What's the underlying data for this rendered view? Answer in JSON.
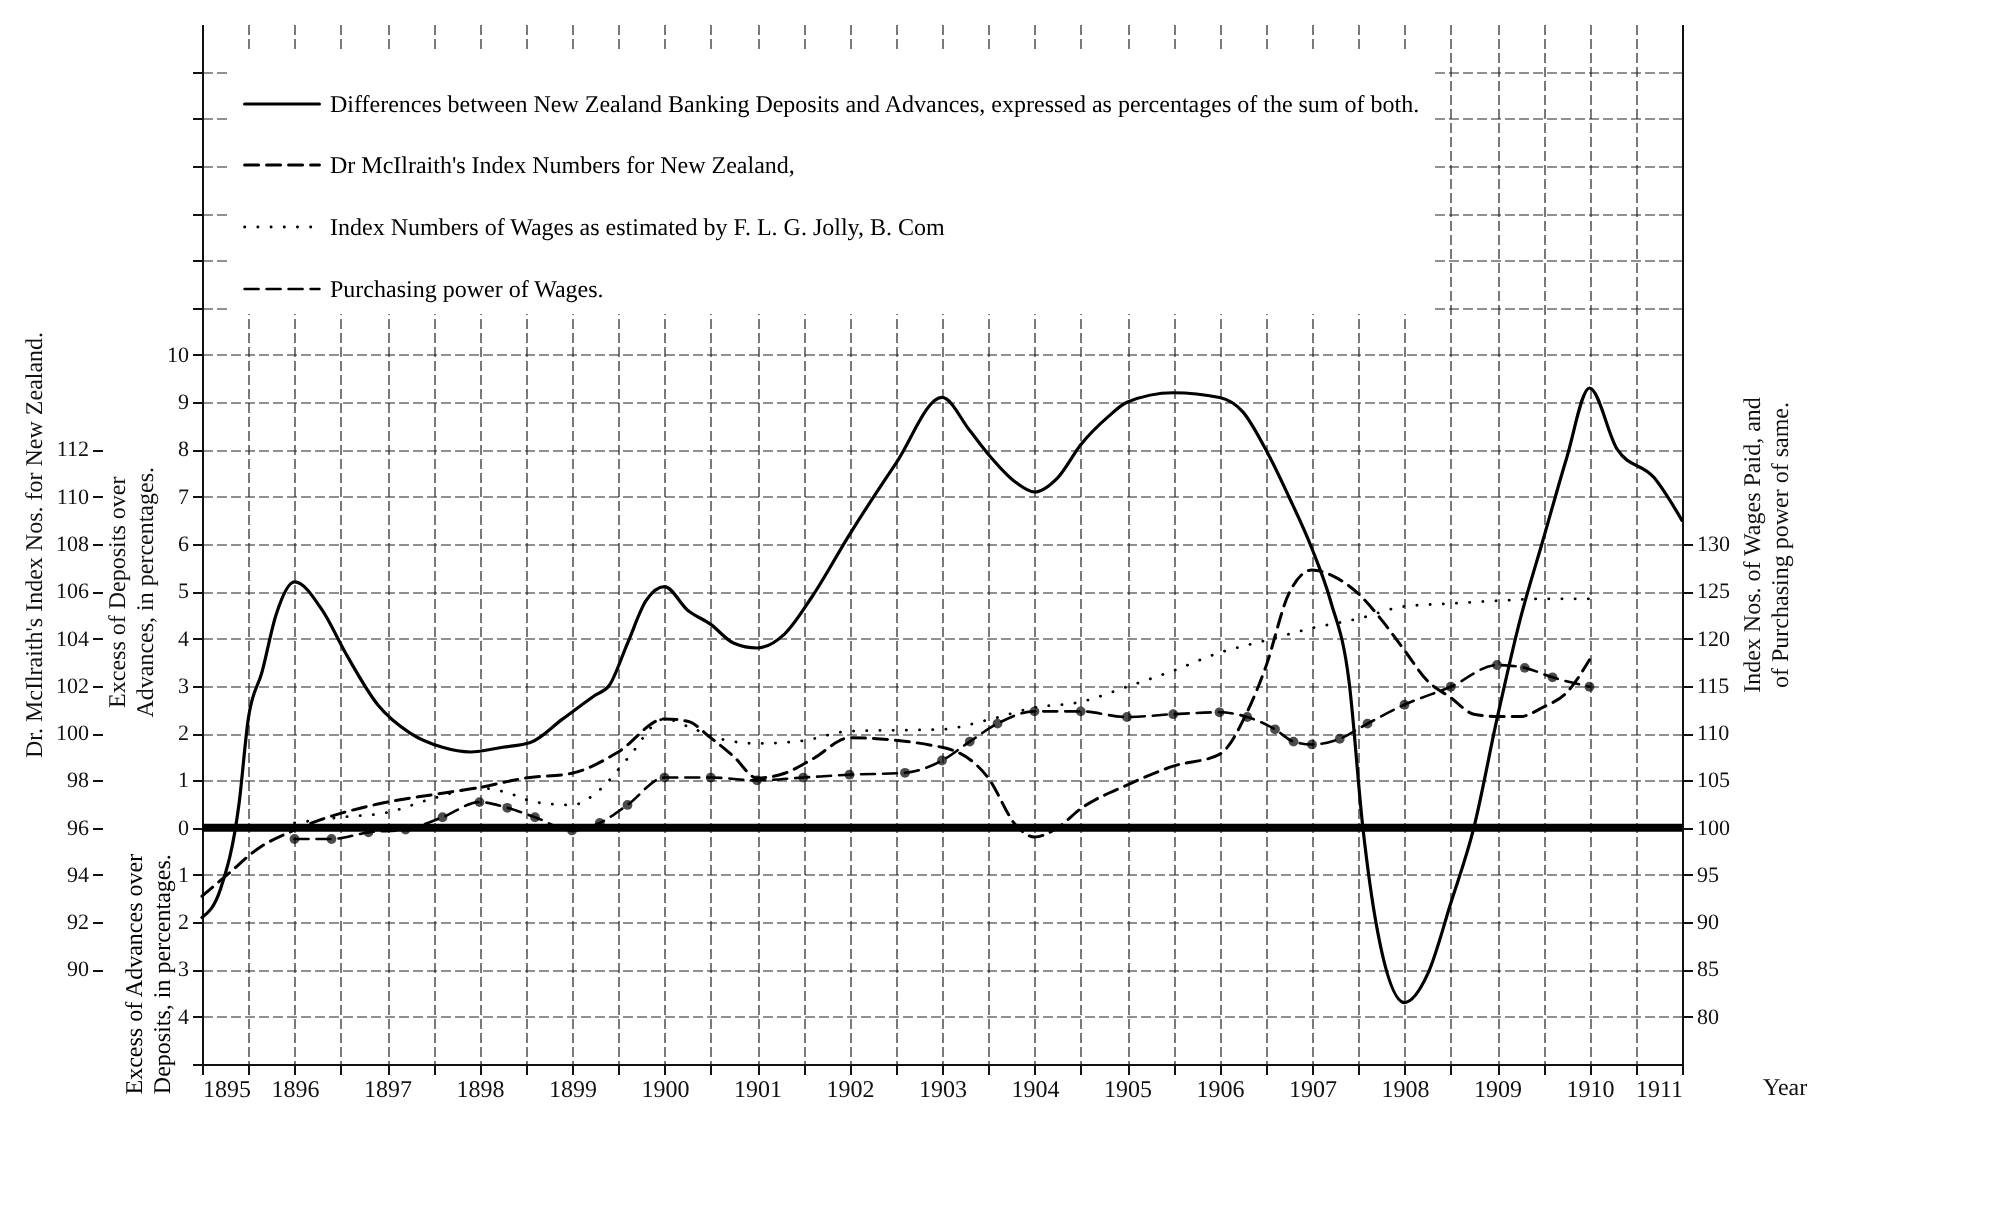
{
  "chart_data": {
    "type": "line",
    "xlabel": "Year",
    "ylabel": "Excess of Deposits over Advances, in percentages.",
    "y2label": "Dr. McIlraith's Index Nos. for New Zealand.",
    "y3label": "Index Nos. of Wages Paid, and of Purchasing power of same.",
    "annotations": [
      "Excess of Advances over Deposits, in percentages."
    ],
    "xlim": [
      1895,
      1911
    ],
    "xticks": [
      1895,
      {
        "value": 1895.5,
        "label": null
      },
      1896,
      {
        "value": 1896.5,
        "label": null
      },
      1897,
      {
        "value": 1897.5,
        "label": null
      },
      1898,
      {
        "value": 1898.5,
        "label": null
      },
      1899,
      {
        "value": 1899.5,
        "label": null
      },
      1900,
      {
        "value": 1900.5,
        "label": null
      },
      1901,
      {
        "value": 1901.5,
        "label": null
      },
      1902,
      {
        "value": 1902.5,
        "label": null
      },
      1903,
      {
        "value": 1903.5,
        "label": null
      },
      1904,
      {
        "value": 1904.5,
        "label": null
      },
      1905,
      {
        "value": 1905.5,
        "label": null
      },
      1906,
      {
        "value": 1906.5,
        "label": null
      },
      1907,
      {
        "value": 1907.5,
        "label": null
      },
      1908,
      {
        "value": 1908.5,
        "label": null
      },
      1909,
      {
        "value": 1909.5,
        "label": null
      },
      1910,
      {
        "value": 1910.5,
        "label": null
      },
      1911
    ],
    "ylim": [
      -5,
      17
    ],
    "yticks": [
      {
        "value": -5,
        "label": null
      },
      {
        "value": -4,
        "label": "4"
      },
      {
        "value": -3,
        "label": "3"
      },
      {
        "value": -2,
        "label": "2"
      },
      {
        "value": -1,
        "label": "1"
      },
      0,
      1,
      2,
      3,
      4,
      5,
      6,
      7,
      8,
      9,
      10,
      {
        "value": 11,
        "label": null
      },
      {
        "value": 12,
        "label": null
      },
      {
        "value": 13,
        "label": null
      },
      {
        "value": 14,
        "label": null
      },
      {
        "value": 15,
        "label": null
      },
      {
        "value": 16,
        "label": null
      }
    ],
    "y2lim": [
      86,
      130
    ],
    "y2ticks": [
      90,
      92,
      94,
      96,
      98,
      100,
      102,
      104,
      106,
      108,
      110,
      112
    ],
    "y3lim": [
      75,
      185
    ],
    "y3ticks": [
      80,
      85,
      90,
      95,
      100,
      105,
      110,
      115,
      120,
      125,
      130
    ],
    "grid": true,
    "legend": "top left",
    "ref_lines": [
      {
        "axis": "y",
        "value": 0,
        "label": null,
        "color": "#000000"
      }
    ],
    "series": [
      {
        "name": "Differences between New Zealand Banking Deposits and Advances, expressed as percentages of the sum of both.",
        "color": "#000000",
        "line_style": "solid",
        "x": [
          1895,
          1895.2,
          1895.4,
          1895.5,
          1895.65,
          1895.8,
          1896,
          1896.3,
          1896.55,
          1896.9,
          1897.25,
          1897.6,
          1897.9,
          1898.25,
          1898.55,
          1898.9,
          1899.25,
          1899.4,
          1899.6,
          1899.8,
          1900,
          1900.25,
          1900.5,
          1900.75,
          1901,
          1901.3,
          1901.6,
          1902,
          1902.5,
          1903,
          1903.3,
          1903.5,
          1903.8,
          1904,
          1904.25,
          1904.5,
          1904.8,
          1905,
          1905.5,
          1906,
          1906.25,
          1906.5,
          1906.75,
          1907,
          1907.2,
          1907.4,
          1907.55,
          1907.7,
          1908,
          1908.25,
          1908.5,
          1908.75,
          1909,
          1909.25,
          1909.5,
          1909.75,
          1910,
          1910.3,
          1910.7,
          1911
        ],
        "values": [
          -1.9,
          -1.3,
          0.5,
          2.3,
          3.3,
          4.5,
          5.2,
          4.6,
          3.7,
          2.6,
          2.0,
          1.7,
          1.6,
          1.7,
          1.8,
          2.3,
          2.8,
          3.0,
          3.9,
          4.8,
          5.1,
          4.6,
          4.3,
          3.9,
          3.8,
          4.1,
          4.9,
          6.2,
          7.7,
          9.1,
          8.4,
          7.9,
          7.3,
          7.1,
          7.4,
          8.1,
          8.7,
          9.0,
          9.2,
          9.1,
          8.8,
          8.0,
          7.0,
          5.9,
          4.8,
          3.1,
          0,
          -2.1,
          -3.7,
          -3.1,
          -1.6,
          0,
          2.3,
          4.4,
          6.1,
          7.8,
          9.3,
          8.0,
          7.4,
          6.5
        ]
      },
      {
        "name": "Dr McIlraith's Index Numbers for New Zealand,",
        "color": "#000000",
        "line_style": "dashed",
        "axis": "y2",
        "x": [
          1895,
          1895.3,
          1895.6,
          1896,
          1896.9,
          1897.5,
          1898,
          1898.5,
          1899,
          1899.5,
          1900,
          1900.25,
          1900.5,
          1900.75,
          1901,
          1901.3,
          1901.6,
          1902,
          1903,
          1903.5,
          1903.8,
          1904,
          1904.25,
          1904.5,
          1905,
          1905.5,
          1906,
          1906.3,
          1906.5,
          1906.75,
          1907,
          1907.25,
          1907.5,
          1907.75,
          1908,
          1908.25,
          1908.5,
          1908.75,
          1909,
          1909.25,
          1909.5,
          1909.75,
          1910
        ],
        "values": [
          93.1,
          94.1,
          95.1,
          95.9,
          97.0,
          97.4,
          97.7,
          98.1,
          98.3,
          99.2,
          100.6,
          100.5,
          99.8,
          99.0,
          98.1,
          98.3,
          98.9,
          99.8,
          99.4,
          98.1,
          96.1,
          95.6,
          96.0,
          96.8,
          97.8,
          98.6,
          99.1,
          100.9,
          102.8,
          105.9,
          106.9,
          106.6,
          105.9,
          104.8,
          103.5,
          102.2,
          101.5,
          100.8,
          100.7,
          100.7,
          101.1,
          101.7,
          103.1
        ]
      },
      {
        "name": "Index Numbers of Wages as estimated by F. L. G. Jolly, B. Com",
        "color": "#000000",
        "line_style": "dotted",
        "axis": "y3",
        "x": [
          1896,
          1896.5,
          1897,
          1897.5,
          1898,
          1898.3,
          1898.6,
          1899,
          1899.3,
          1899.6,
          1900,
          1900.3,
          1900.6,
          1901,
          1901.5,
          1902,
          1903,
          1903.5,
          1904,
          1904.5,
          1905,
          1905.5,
          1906,
          1906.5,
          1907,
          1907.5,
          1908,
          1908.5,
          1909,
          1909.5,
          1910
        ],
        "values": [
          100.5,
          101.1,
          101.6,
          103.1,
          104.2,
          103.7,
          102.7,
          102.4,
          104.0,
          107.3,
          111.5,
          110.5,
          109.4,
          108.9,
          109.2,
          110.2,
          110.4,
          111.4,
          112.7,
          113.3,
          114.9,
          116.6,
          118.5,
          119.8,
          121.1,
          122.1,
          123.4,
          123.7,
          124.0,
          124.2,
          124.2
        ]
      },
      {
        "name": "Purchasing power of Wages.",
        "color": "#000000",
        "line_style": "dashed",
        "marker": "circle",
        "axis": "y3",
        "x": [
          1896,
          1896.4,
          1896.8,
          1897.2,
          1897.6,
          1898,
          1898.3,
          1898.6,
          1899,
          1899.3,
          1899.6,
          1900,
          1900.5,
          1901,
          1901.5,
          1902,
          1902.6,
          1903,
          1903.3,
          1903.6,
          1904,
          1904.5,
          1905,
          1905.5,
          1906,
          1906.3,
          1906.6,
          1906.8,
          1907,
          1907.3,
          1907.6,
          1908,
          1908.5,
          1909,
          1909.3,
          1909.6,
          1910
        ],
        "values": [
          98.8,
          98.8,
          99.5,
          99.8,
          101.1,
          102.7,
          102.1,
          101.1,
          99.7,
          100.5,
          102.4,
          105.3,
          105.3,
          105.0,
          105.3,
          105.6,
          105.8,
          107.1,
          109.1,
          111.0,
          112.3,
          112.3,
          111.7,
          112.0,
          112.2,
          111.7,
          110.4,
          109.1,
          108.8,
          109.4,
          111.0,
          113.0,
          114.9,
          117.2,
          116.9,
          115.9,
          114.9
        ]
      }
    ]
  }
}
